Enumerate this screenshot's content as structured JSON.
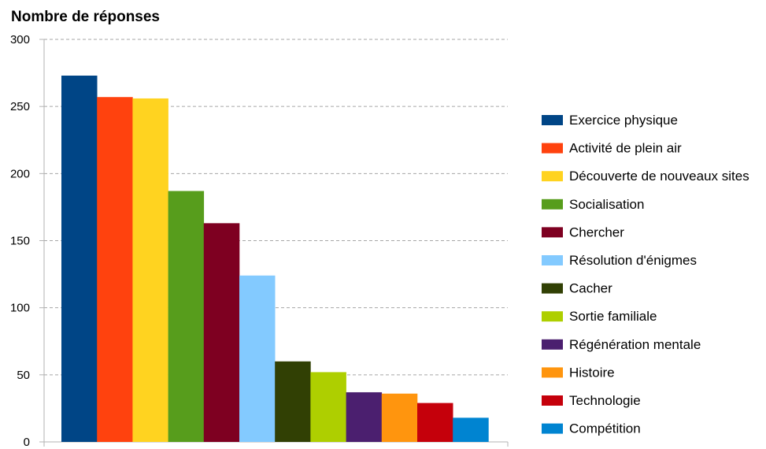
{
  "chart_data": {
    "type": "bar",
    "title": "Nombre de réponses",
    "xlabel": "",
    "ylabel": "",
    "ylim": [
      0,
      300
    ],
    "yticks": [
      0,
      50,
      100,
      150,
      200,
      250,
      300
    ],
    "grid": true,
    "legend_position": "right",
    "categories": [
      "Exercice physique",
      "Activité de plein air",
      "Découverte de nouveaux sites",
      "Socialisation",
      "Chercher",
      "Résolution d'énigmes",
      "Cacher",
      "Sortie familiale",
      "Régénération mentale",
      "Histoire",
      "Technologie",
      "Compétition"
    ],
    "values": [
      273,
      257,
      256,
      187,
      163,
      124,
      60,
      52,
      37,
      36,
      29,
      18
    ],
    "colors": [
      "#004586",
      "#ff420e",
      "#ffd320",
      "#579d1c",
      "#7e0021",
      "#83caff",
      "#314004",
      "#aecf00",
      "#4b1f6f",
      "#ff950e",
      "#c5000b",
      "#0084d1"
    ]
  }
}
